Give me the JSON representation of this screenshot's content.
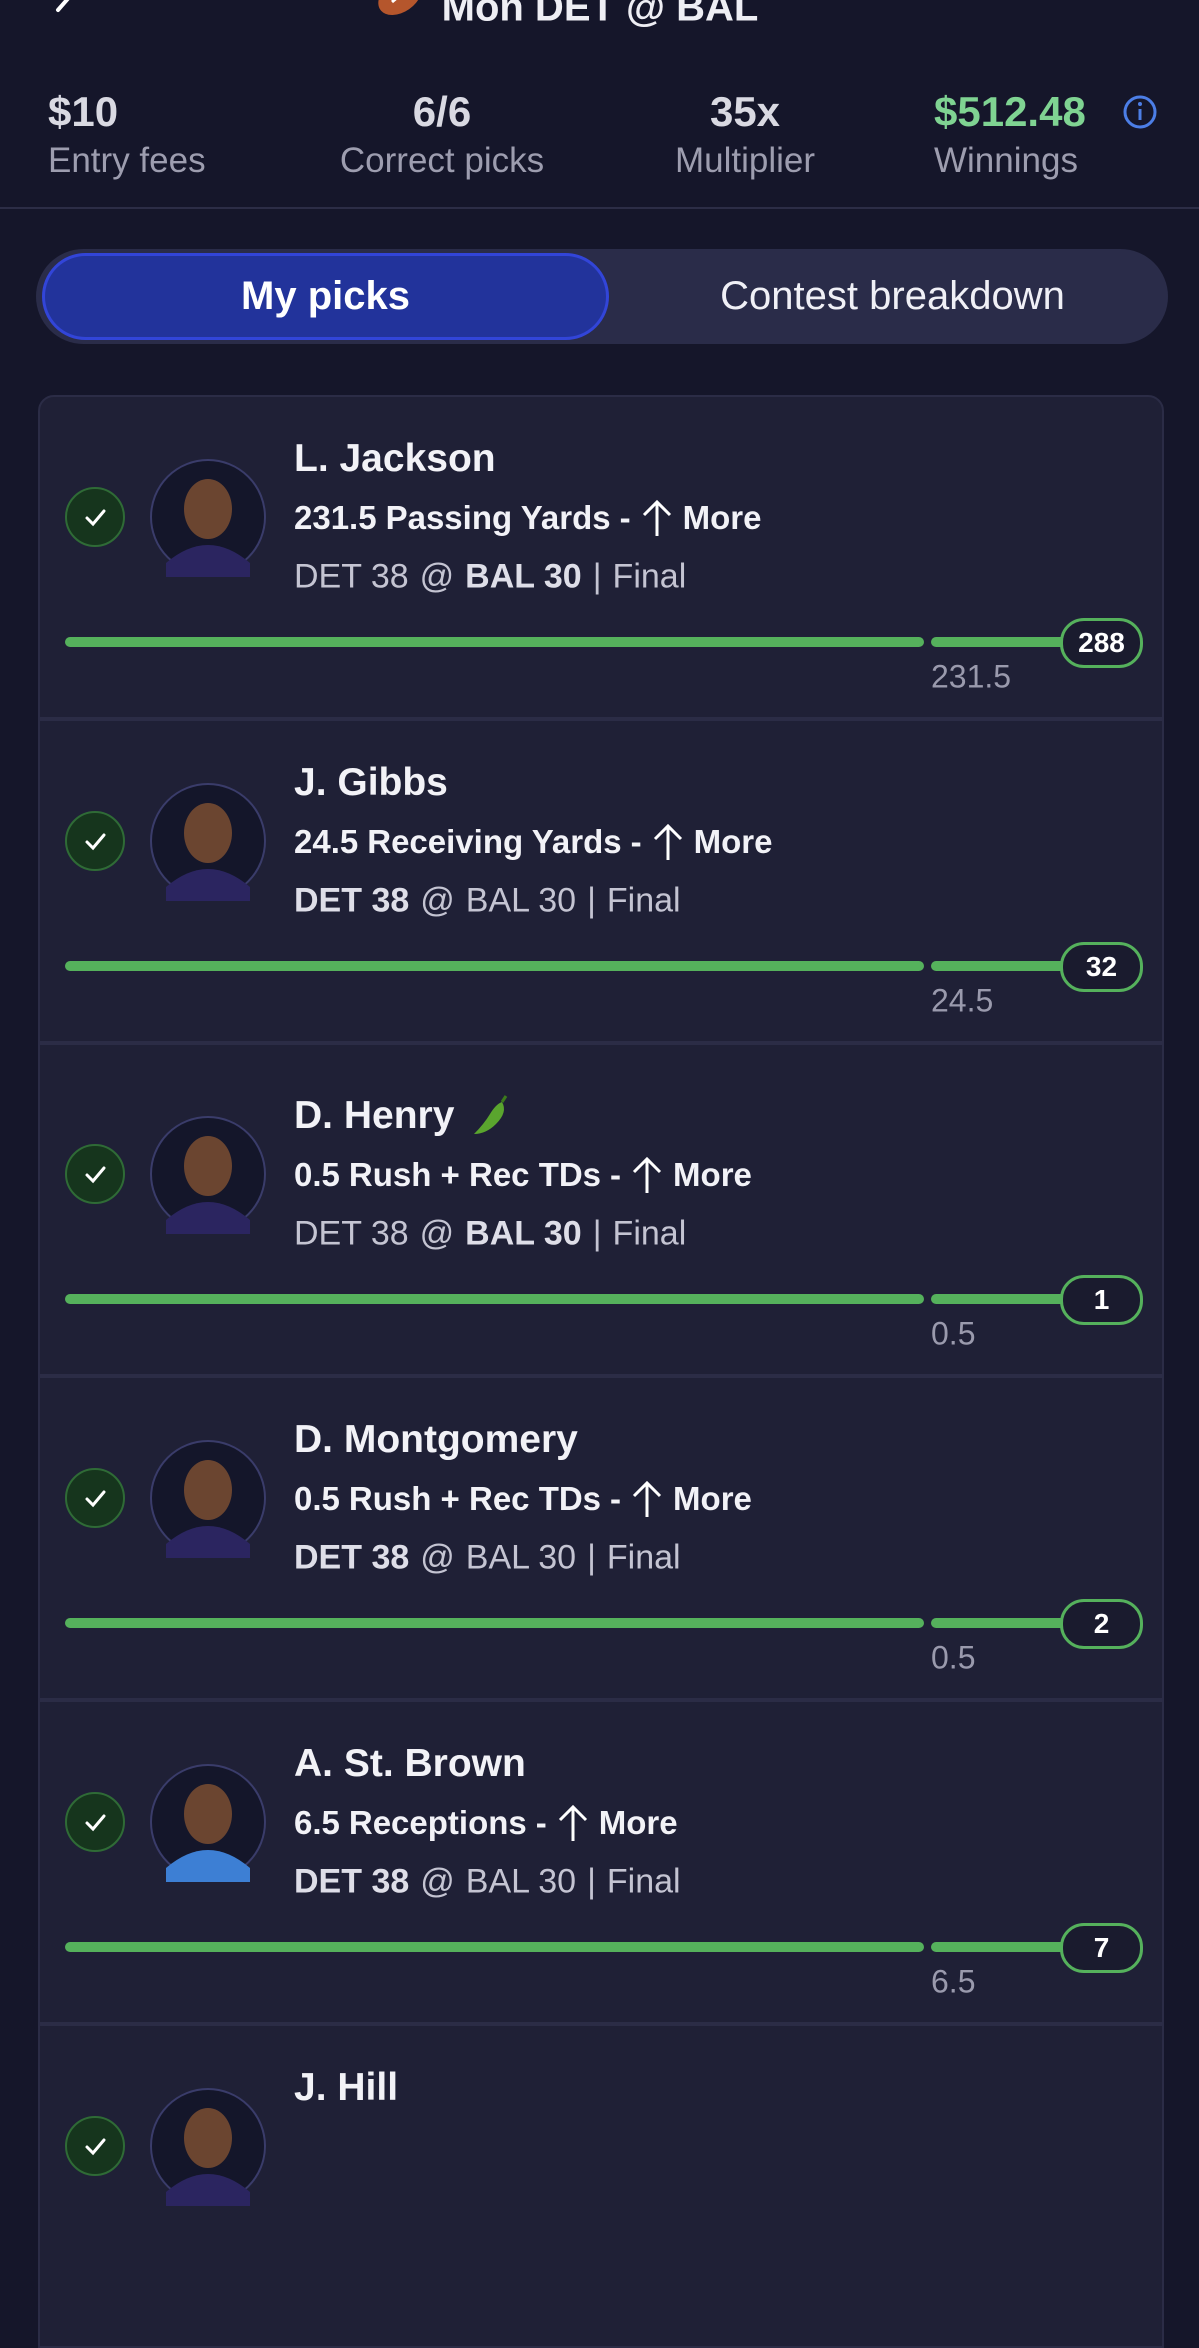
{
  "header": {
    "title": "Mon DET @ BAL"
  },
  "stats": [
    {
      "value": "$10",
      "label": "Entry fees"
    },
    {
      "value": "6/6",
      "label": "Correct picks"
    },
    {
      "value": "35x",
      "label": "Multiplier"
    },
    {
      "value": "$512.48",
      "label": "Winnings"
    }
  ],
  "tabs": [
    "My picks",
    "Contest breakdown"
  ],
  "active_tab": 0,
  "picks": [
    {
      "name": "L. Jackson",
      "prop": {
        "line": 231.5,
        "stat": "Passing Yards",
        "dash": "-",
        "direction": "More"
      },
      "game": {
        "away": "DET 38",
        "separator": "@",
        "home": "BAL 30",
        "divider": "|",
        "status": "Final",
        "player_team": "home"
      },
      "actual": 288
    },
    {
      "name": "J. Gibbs",
      "prop": {
        "line": 24.5,
        "stat": "Receiving Yards",
        "dash": "-",
        "direction": "More"
      },
      "game": {
        "away": "DET 38",
        "separator": "@",
        "home": "BAL 30",
        "divider": "|",
        "status": "Final",
        "player_team": "away"
      },
      "actual": 32
    },
    {
      "name": "D. Henry",
      "hot": true,
      "prop": {
        "line": 0.5,
        "stat": "Rush + Rec TDs",
        "dash": "-",
        "direction": "More"
      },
      "game": {
        "away": "DET 38",
        "separator": "@",
        "home": "BAL 30",
        "divider": "|",
        "status": "Final",
        "player_team": "home"
      },
      "actual": 1
    },
    {
      "name": "D. Montgomery",
      "prop": {
        "line": 0.5,
        "stat": "Rush + Rec TDs",
        "dash": "-",
        "direction": "More"
      },
      "game": {
        "away": "DET 38",
        "separator": "@",
        "home": "BAL 30",
        "divider": "|",
        "status": "Final",
        "player_team": "away"
      },
      "actual": 2
    },
    {
      "name": "A. St. Brown",
      "prop": {
        "line": 6.5,
        "stat": "Receptions",
        "dash": "-",
        "direction": "More"
      },
      "game": {
        "away": "DET 38",
        "separator": "@",
        "home": "BAL 30",
        "divider": "|",
        "status": "Final",
        "player_team": "away"
      },
      "actual": 7
    },
    {
      "name": "J. Hill"
    }
  ]
}
